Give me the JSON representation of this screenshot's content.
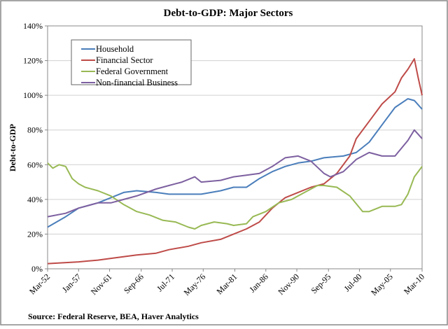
{
  "chart_data": {
    "type": "line",
    "title": "Debt-to-GDP:   Major Sectors",
    "xlabel": "",
    "ylabel": "Debt-to-GDP",
    "source": "Source:  Federal Reserve, BEA, Haver Analytics",
    "ylim": [
      0,
      140
    ],
    "xlim": [
      1952.2,
      2010.2
    ],
    "y_ticks": [
      0,
      20,
      40,
      60,
      80,
      100,
      120,
      140
    ],
    "y_tick_labels": [
      "0%",
      "20%",
      "40%",
      "60%",
      "80%",
      "100%",
      "120%",
      "140%"
    ],
    "x_ticks": [
      1952.2,
      1957.0,
      1961.8,
      1966.7,
      1971.5,
      1976.3,
      1981.2,
      1986.0,
      1990.8,
      1995.7,
      2000.5,
      2005.3,
      2010.2
    ],
    "x_tick_labels": [
      "Mar-52",
      "Jan-57",
      "Nov-61",
      "Sep-66",
      "Jul-71",
      "May-76",
      "Mar-81",
      "Jan-86",
      "Nov-90",
      "Sep-95",
      "Jul-00",
      "May-05",
      "Mar-10"
    ],
    "grid": true,
    "legend_position": "top-left",
    "series": [
      {
        "name": "Household",
        "color": "#4a7ebb",
        "points": [
          [
            1952.2,
            24
          ],
          [
            1955,
            30
          ],
          [
            1957,
            35
          ],
          [
            1960,
            38
          ],
          [
            1962,
            41
          ],
          [
            1964,
            44
          ],
          [
            1966,
            45
          ],
          [
            1969,
            44
          ],
          [
            1971,
            43
          ],
          [
            1974,
            43
          ],
          [
            1976,
            43
          ],
          [
            1979,
            45
          ],
          [
            1981,
            47
          ],
          [
            1983,
            47
          ],
          [
            1985,
            52
          ],
          [
            1987,
            56
          ],
          [
            1989,
            59
          ],
          [
            1991,
            61
          ],
          [
            1993,
            62
          ],
          [
            1995,
            64
          ],
          [
            1998,
            65
          ],
          [
            2000,
            67
          ],
          [
            2002,
            73
          ],
          [
            2004,
            83
          ],
          [
            2006,
            93
          ],
          [
            2008,
            98
          ],
          [
            2009,
            97
          ],
          [
            2010.2,
            92
          ]
        ]
      },
      {
        "name": "Financial Sector",
        "color": "#be4b48",
        "points": [
          [
            1952.2,
            3
          ],
          [
            1957,
            4
          ],
          [
            1960,
            5
          ],
          [
            1962,
            6
          ],
          [
            1966,
            8
          ],
          [
            1969,
            9
          ],
          [
            1971,
            11
          ],
          [
            1974,
            13
          ],
          [
            1976,
            15
          ],
          [
            1979,
            17
          ],
          [
            1981,
            20
          ],
          [
            1983,
            23
          ],
          [
            1985,
            27
          ],
          [
            1987,
            35
          ],
          [
            1989,
            41
          ],
          [
            1991,
            44
          ],
          [
            1993,
            47
          ],
          [
            1995,
            49
          ],
          [
            1997,
            55
          ],
          [
            1999,
            65
          ],
          [
            2000,
            75
          ],
          [
            2002,
            85
          ],
          [
            2004,
            95
          ],
          [
            2006,
            102
          ],
          [
            2007,
            110
          ],
          [
            2008,
            115
          ],
          [
            2009,
            121
          ],
          [
            2009.6,
            110
          ],
          [
            2010.2,
            100
          ]
        ]
      },
      {
        "name": "Federal Government",
        "color": "#98b954",
        "points": [
          [
            1952.2,
            61
          ],
          [
            1953,
            58
          ],
          [
            1954,
            60
          ],
          [
            1955,
            59
          ],
          [
            1956,
            52
          ],
          [
            1957,
            49
          ],
          [
            1958,
            47
          ],
          [
            1960,
            45
          ],
          [
            1962,
            42
          ],
          [
            1964,
            37
          ],
          [
            1966,
            33
          ],
          [
            1968,
            31
          ],
          [
            1970,
            28
          ],
          [
            1972,
            27
          ],
          [
            1974,
            24
          ],
          [
            1975,
            23
          ],
          [
            1976,
            25
          ],
          [
            1978,
            27
          ],
          [
            1980,
            26
          ],
          [
            1981,
            25
          ],
          [
            1983,
            26
          ],
          [
            1984,
            30
          ],
          [
            1986,
            33
          ],
          [
            1988,
            38
          ],
          [
            1990,
            40
          ],
          [
            1992,
            44
          ],
          [
            1994,
            48
          ],
          [
            1995,
            48
          ],
          [
            1997,
            47
          ],
          [
            1999,
            42
          ],
          [
            2001,
            33
          ],
          [
            2002,
            33
          ],
          [
            2004,
            36
          ],
          [
            2006,
            36
          ],
          [
            2007,
            37
          ],
          [
            2008,
            43
          ],
          [
            2009,
            53
          ],
          [
            2010.2,
            59
          ]
        ]
      },
      {
        "name": "Non-financial Business",
        "color": "#7d60a0",
        "points": [
          [
            1952.2,
            30
          ],
          [
            1955,
            32
          ],
          [
            1957,
            35
          ],
          [
            1960,
            38
          ],
          [
            1962,
            38
          ],
          [
            1964,
            40
          ],
          [
            1966,
            42
          ],
          [
            1969,
            46
          ],
          [
            1971,
            48
          ],
          [
            1973,
            50
          ],
          [
            1975,
            53
          ],
          [
            1976,
            50
          ],
          [
            1979,
            51
          ],
          [
            1981,
            53
          ],
          [
            1983,
            54
          ],
          [
            1985,
            55
          ],
          [
            1987,
            59
          ],
          [
            1989,
            64
          ],
          [
            1991,
            65
          ],
          [
            1993,
            62
          ],
          [
            1995,
            55
          ],
          [
            1996,
            53
          ],
          [
            1998,
            56
          ],
          [
            2000,
            63
          ],
          [
            2002,
            67
          ],
          [
            2004,
            65
          ],
          [
            2006,
            65
          ],
          [
            2008,
            74
          ],
          [
            2009,
            80
          ],
          [
            2010.2,
            75
          ]
        ]
      }
    ]
  }
}
